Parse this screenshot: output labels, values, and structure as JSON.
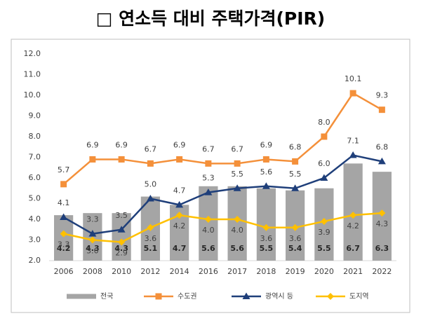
{
  "chart_data": {
    "type": "bar",
    "title": "□ 연소득 대비 주택가격(PIR)",
    "categories": [
      "2006",
      "2008",
      "2010",
      "2012",
      "2014",
      "2016",
      "2017",
      "2018",
      "2019",
      "2020",
      "2021",
      "2022"
    ],
    "ylim": [
      2,
      12
    ],
    "yticks": [
      {
        "value": 2,
        "label": "2.0"
      },
      {
        "value": 3,
        "label": "3.0"
      },
      {
        "value": 4,
        "label": "4.0"
      },
      {
        "value": 5,
        "label": "5.0"
      },
      {
        "value": 6,
        "label": "6.0"
      },
      {
        "value": 7,
        "label": "7.0"
      },
      {
        "value": 8,
        "label": "8.0"
      },
      {
        "value": 9,
        "label": "9.0"
      },
      {
        "value": 10,
        "label": "10.0"
      },
      {
        "value": 11,
        "label": "11.0"
      },
      {
        "value": 12,
        "label": "12.0"
      }
    ],
    "grid": false,
    "legend": "bottom",
    "series": [
      {
        "name": "전국",
        "type": "bar",
        "color": "#a5a5a5",
        "values": [
          4.2,
          4.3,
          4.3,
          5.1,
          4.7,
          5.6,
          5.6,
          5.5,
          5.4,
          5.5,
          6.7,
          6.3
        ],
        "value_labels": [
          "4.2",
          "4.3",
          "4.3",
          "5.1",
          "4.7",
          "5.6",
          "5.6",
          "5.5",
          "5.4",
          "5.5",
          "6.7",
          "6.3"
        ]
      },
      {
        "name": "수도권",
        "type": "line",
        "marker": "square",
        "color": "#f4903a",
        "values": [
          5.7,
          6.9,
          6.9,
          6.7,
          6.9,
          6.7,
          6.7,
          6.9,
          6.8,
          8,
          10.1,
          9.3
        ],
        "value_labels": [
          "5.7",
          "6.9",
          "6.9",
          "6.7",
          "6.9",
          "6.7",
          "6.7",
          "6.9",
          "6.8",
          "8.0",
          "10.1",
          "9.3"
        ]
      },
      {
        "name": "광역시 등",
        "type": "line",
        "marker": "triangle",
        "color": "#1f3f7a",
        "values": [
          4.1,
          3.3,
          3.5,
          5,
          4.7,
          5.3,
          5.5,
          5.6,
          5.5,
          6,
          7.1,
          6.8
        ],
        "value_labels": [
          "4.1",
          "3.3",
          "3.5",
          "5.0",
          "4.7",
          "5.3",
          "5.5",
          "5.6",
          "5.5",
          "6.0",
          "7.1",
          "6.8"
        ]
      },
      {
        "name": "도지역",
        "type": "line",
        "marker": "diamond",
        "color": "#ffc000",
        "values": [
          3.3,
          3,
          2.9,
          3.6,
          4.2,
          4,
          4,
          3.6,
          3.6,
          3.9,
          4.2,
          4.3
        ],
        "value_labels": [
          "3.3",
          "3.0",
          "2.9",
          "3.6",
          "4.2",
          "4.0",
          "4.0",
          "3.6",
          "3.6",
          "3.9",
          "4.2",
          "4.3"
        ]
      }
    ]
  }
}
